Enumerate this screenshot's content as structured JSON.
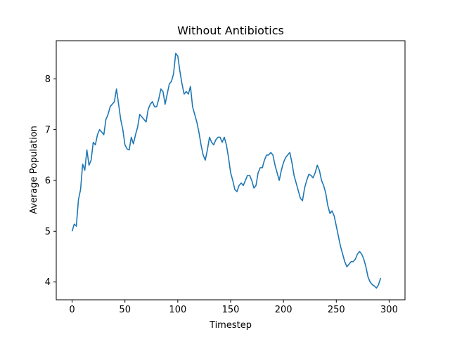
{
  "chart_data": {
    "type": "line",
    "title": "Without Antibiotics",
    "xlabel": "Timestep",
    "ylabel": "Average Population",
    "xlim": [
      -15,
      315
    ],
    "ylim": [
      3.65,
      8.75
    ],
    "xticks": [
      0,
      50,
      100,
      150,
      200,
      250,
      300
    ],
    "yticks": [
      4,
      5,
      6,
      7,
      8
    ],
    "grid": false,
    "legend": "none",
    "series": [
      {
        "color": "#1f77b4",
        "x_step": 2,
        "x_start": 0,
        "values": [
          5.0,
          5.14,
          5.1,
          5.62,
          5.82,
          6.32,
          6.2,
          6.6,
          6.3,
          6.4,
          6.75,
          6.7,
          6.9,
          7.0,
          6.95,
          6.9,
          7.2,
          7.3,
          7.45,
          7.5,
          7.55,
          7.8,
          7.5,
          7.2,
          7.0,
          6.7,
          6.62,
          6.6,
          6.85,
          6.72,
          6.9,
          7.05,
          7.3,
          7.25,
          7.2,
          7.15,
          7.4,
          7.5,
          7.55,
          7.45,
          7.45,
          7.6,
          7.8,
          7.75,
          7.5,
          7.7,
          7.9,
          7.95,
          8.1,
          8.5,
          8.45,
          8.15,
          7.9,
          7.7,
          7.75,
          7.7,
          7.85,
          7.45,
          7.3,
          7.15,
          6.95,
          6.7,
          6.5,
          6.4,
          6.6,
          6.85,
          6.75,
          6.7,
          6.8,
          6.85,
          6.85,
          6.75,
          6.85,
          6.7,
          6.45,
          6.15,
          6.0,
          5.82,
          5.78,
          5.9,
          5.95,
          5.9,
          6.0,
          6.1,
          6.1,
          6.0,
          5.85,
          5.9,
          6.15,
          6.25,
          6.25,
          6.4,
          6.5,
          6.5,
          6.55,
          6.5,
          6.3,
          6.15,
          6.0,
          6.2,
          6.35,
          6.45,
          6.5,
          6.55,
          6.35,
          6.1,
          5.95,
          5.8,
          5.65,
          5.6,
          5.85,
          6.0,
          6.12,
          6.1,
          6.05,
          6.15,
          6.3,
          6.2,
          6.0,
          5.9,
          5.75,
          5.5,
          5.35,
          5.4,
          5.3,
          5.1,
          4.9,
          4.7,
          4.55,
          4.4,
          4.3,
          4.35,
          4.4,
          4.4,
          4.45,
          4.55,
          4.6,
          4.55,
          4.45,
          4.3,
          4.1,
          4.0,
          3.95,
          3.92,
          3.88,
          3.95,
          4.08
        ]
      }
    ]
  }
}
